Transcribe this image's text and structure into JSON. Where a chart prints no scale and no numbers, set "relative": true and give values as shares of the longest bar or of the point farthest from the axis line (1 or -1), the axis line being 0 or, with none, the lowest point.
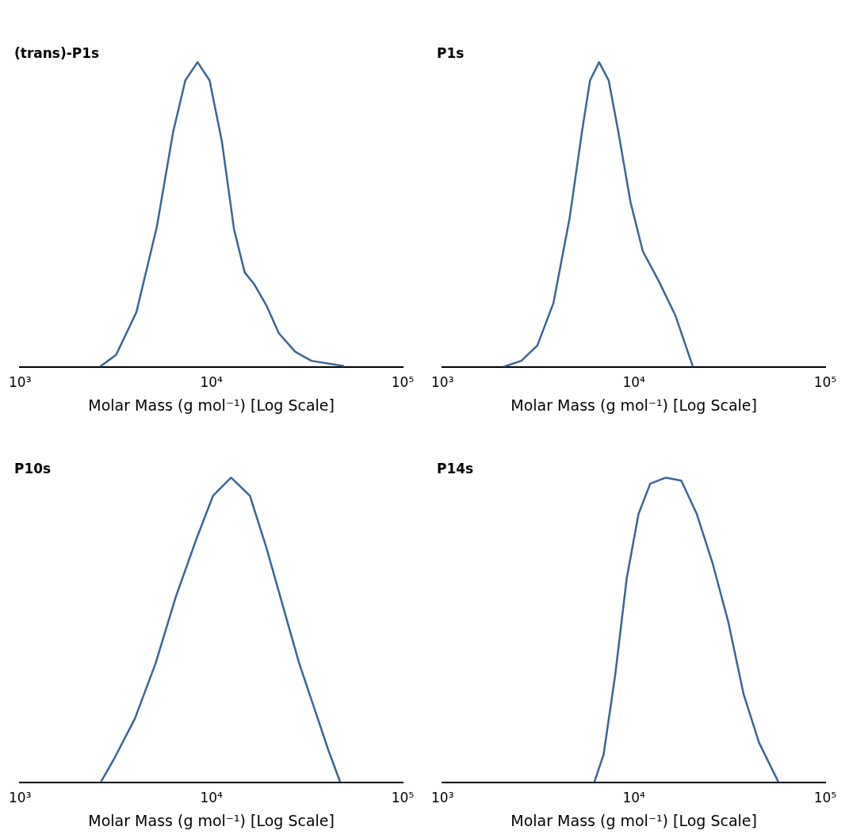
{
  "chart_data": [
    {
      "type": "line",
      "title": "(trans)-P1s",
      "xlabel": "Molar Mass (g mol⁻¹) [Log Scale]",
      "relative": true,
      "log": "x",
      "xlim": [
        1000,
        100000
      ],
      "xticks": [
        {
          "value": 1000,
          "label": "10³"
        },
        {
          "value": 10000,
          "label": "10⁴"
        },
        {
          "value": 100000,
          "label": "10⁵"
        }
      ],
      "grid": false,
      "legend": false,
      "marker": "none",
      "line_style": "solid",
      "series": [
        {
          "color": "#3a6596",
          "x": [
            2610,
            3180,
            4060,
            5190,
            6310,
            7310,
            8470,
            9790,
            11350,
            13150,
            14940,
            16810,
            19460,
            22550,
            27420,
            33340,
            49400
          ],
          "values": [
            0,
            0.04,
            0.18,
            0.46,
            0.77,
            0.94,
            1,
            0.94,
            0.74,
            0.45,
            0.31,
            0.27,
            0.2,
            0.11,
            0.05,
            0.02,
            0.003
          ]
        }
      ]
    },
    {
      "type": "line",
      "title": "P1s",
      "xlabel": "Molar Mass (g mol⁻¹) [Log Scale]",
      "relative": true,
      "log": "x",
      "xlim": [
        1000,
        100000
      ],
      "xticks": [
        {
          "value": 1000,
          "label": "10³"
        },
        {
          "value": 10000,
          "label": "10⁴"
        },
        {
          "value": 100000,
          "label": "10⁵"
        }
      ],
      "grid": false,
      "legend": false,
      "marker": "none",
      "line_style": "solid",
      "series": [
        {
          "color": "#3a6596",
          "x": [
            2080,
            2580,
            3130,
            3800,
            4620,
            5350,
            5900,
            6580,
            7390,
            8300,
            9610,
            11130,
            13530,
            16450,
            20370
          ],
          "values": [
            0,
            0.02,
            0.07,
            0.21,
            0.49,
            0.77,
            0.94,
            1,
            0.94,
            0.77,
            0.54,
            0.38,
            0.28,
            0.17,
            0
          ]
        }
      ]
    },
    {
      "type": "line",
      "title": "P10s",
      "xlabel": "Molar Mass (g mol⁻¹) [Log Scale]",
      "relative": true,
      "log": "x",
      "xlim": [
        1000,
        100000
      ],
      "xticks": [
        {
          "value": 1000,
          "label": "10³"
        },
        {
          "value": 10000,
          "label": "10⁴"
        },
        {
          "value": 100000,
          "label": "10⁵"
        }
      ],
      "grid": false,
      "legend": false,
      "marker": "none",
      "line_style": "solid",
      "series": [
        {
          "color": "#3a6596",
          "x": [
            2640,
            3120,
            3990,
            5110,
            6530,
            8370,
            10200,
            12680,
            15910,
            19400,
            23620,
            28800,
            35080,
            40650,
            47170
          ],
          "values": [
            0,
            0.08,
            0.21,
            0.39,
            0.61,
            0.8,
            0.94,
            1,
            0.94,
            0.77,
            0.58,
            0.39,
            0.23,
            0.11,
            0
          ]
        }
      ]
    },
    {
      "type": "line",
      "title": "P14s",
      "xlabel": "Molar Mass (g mol⁻¹) [Log Scale]",
      "relative": true,
      "log": "x",
      "xlim": [
        1000,
        100000
      ],
      "xticks": [
        {
          "value": 1000,
          "label": "10³"
        },
        {
          "value": 10000,
          "label": "10⁴"
        },
        {
          "value": 100000,
          "label": "10⁵"
        }
      ],
      "grid": false,
      "legend": false,
      "marker": "none",
      "line_style": "solid",
      "series": [
        {
          "color": "#3a6596",
          "x": [
            6210,
            6940,
            7980,
            9180,
            10570,
            12170,
            14690,
            17700,
            21340,
            25760,
            31050,
            37430,
            45120,
            57040
          ],
          "values": [
            0,
            0.09,
            0.35,
            0.67,
            0.88,
            0.98,
            1,
            0.99,
            0.88,
            0.72,
            0.53,
            0.29,
            0.13,
            0
          ]
        }
      ]
    }
  ]
}
